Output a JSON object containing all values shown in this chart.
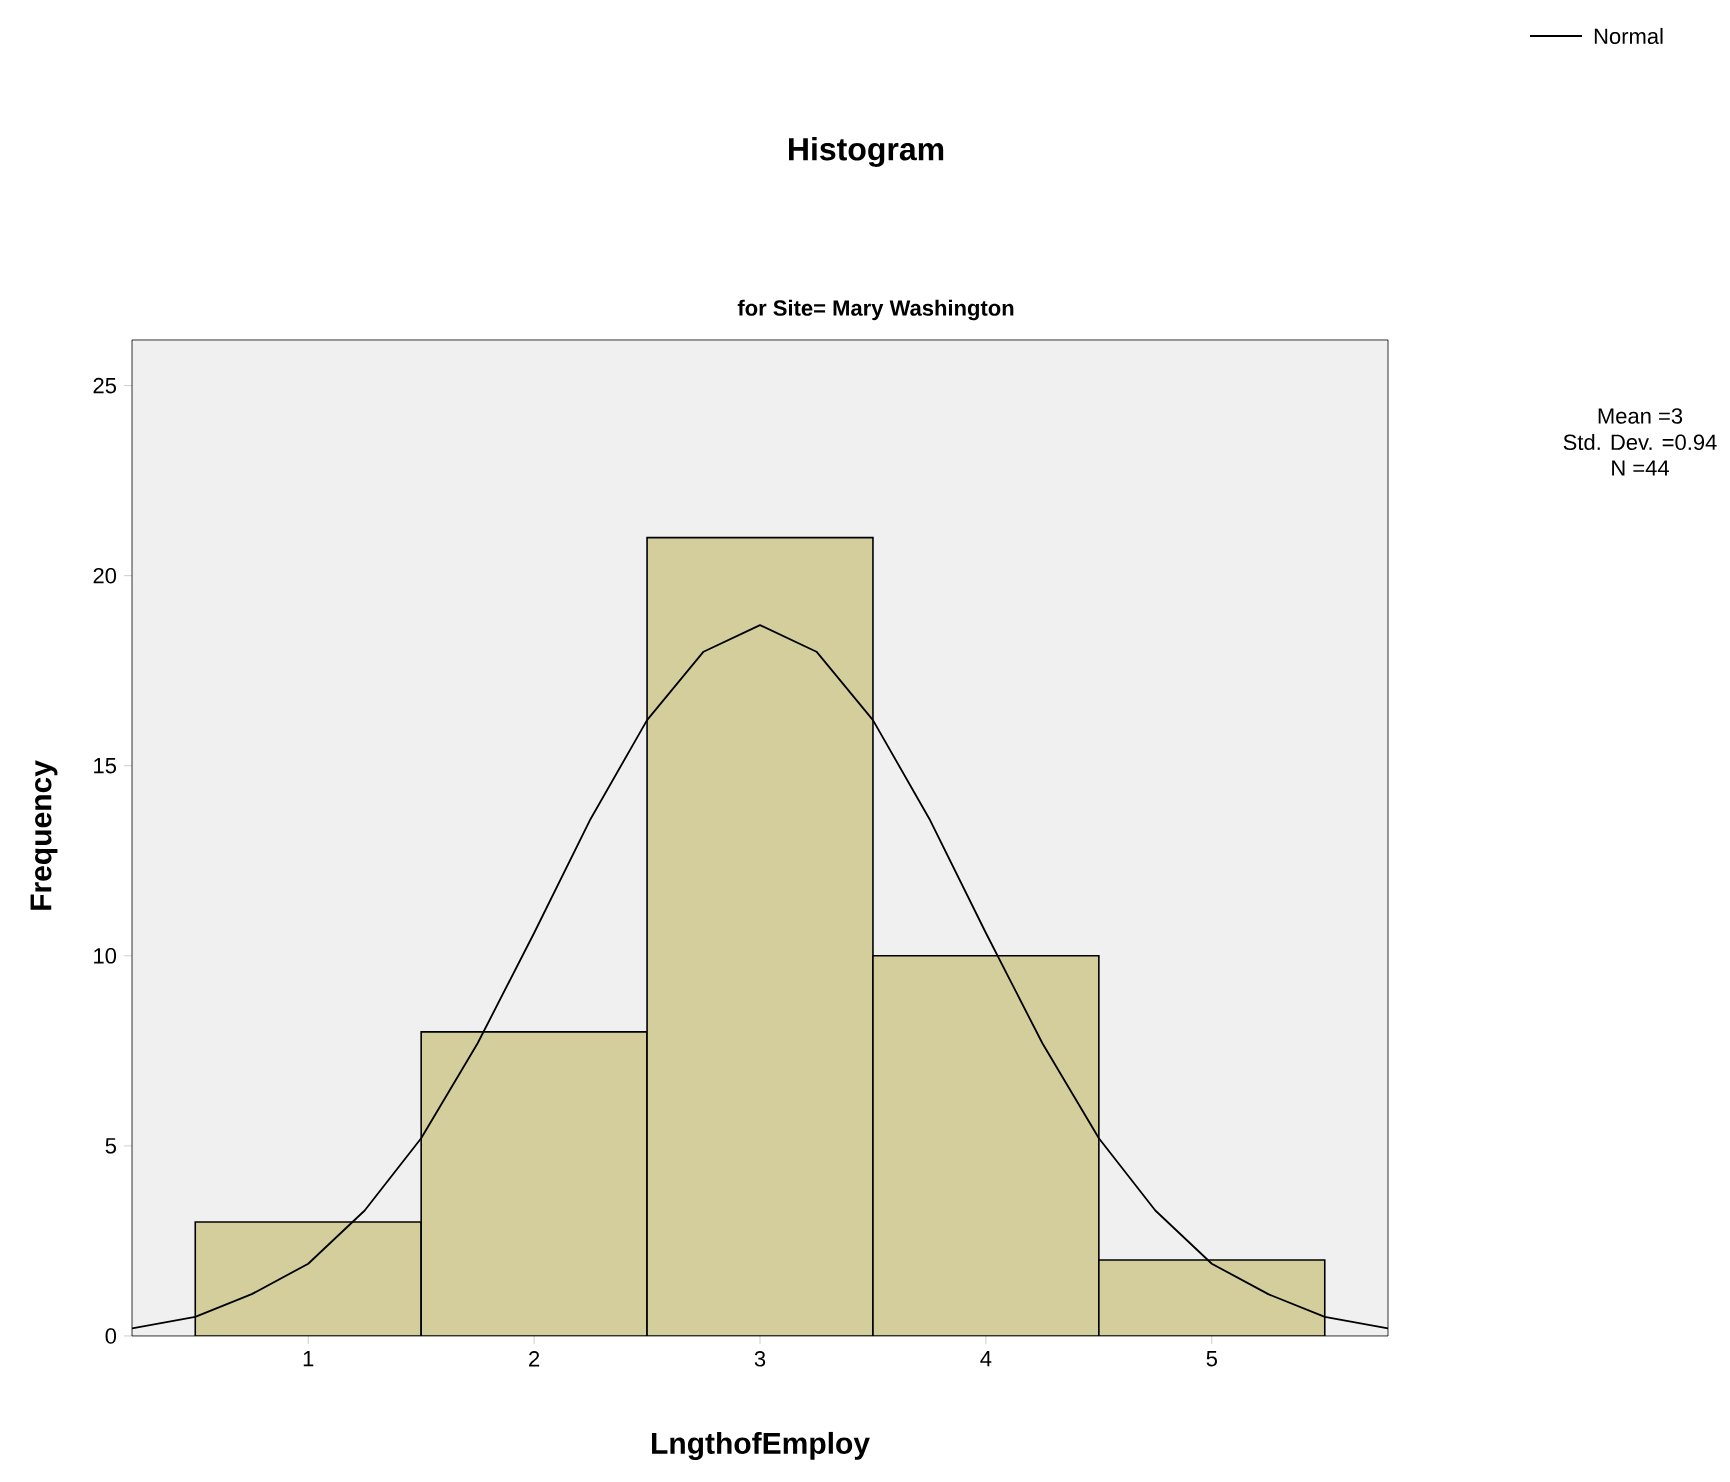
{
  "chart_data": {
    "type": "histogram",
    "title": "Histogram",
    "subtitle": "for Site= Mary Washington",
    "xlabel": "LngthofEmploy",
    "ylabel": "Frequency",
    "bins": [
      0.5,
      1.5,
      2.5,
      3.5,
      4.5,
      5.5
    ],
    "values": [
      3,
      8,
      21,
      10,
      2
    ],
    "color": "#d3ce9c",
    "series": [
      {
        "name": "Normal",
        "type": "line",
        "color": "#000000",
        "x": [
          0.22,
          0.5,
          0.75,
          1.0,
          1.25,
          1.5,
          1.75,
          2.0,
          2.25,
          2.5,
          2.75,
          3.0,
          3.25,
          3.5,
          3.75,
          4.0,
          4.25,
          4.5,
          4.75,
          5.0,
          5.25,
          5.5,
          5.78
        ],
        "values": [
          0.2,
          0.5,
          1.1,
          1.9,
          3.3,
          5.2,
          7.7,
          10.6,
          13.6,
          16.2,
          18.0,
          18.7,
          18.0,
          16.2,
          13.6,
          10.6,
          7.7,
          5.2,
          3.3,
          1.9,
          1.1,
          0.5,
          0.2
        ]
      }
    ],
    "xlim": [
      0.22,
      5.78
    ],
    "ylim": [
      0,
      26.2
    ],
    "xticks": [
      1,
      2,
      3,
      4,
      5
    ],
    "yticks": [
      0,
      5,
      10,
      15,
      20,
      25
    ],
    "grid": false,
    "legend": "top right",
    "annotations": [
      "Mean =3",
      "Std. Dev. =0.94",
      "N =44"
    ]
  }
}
